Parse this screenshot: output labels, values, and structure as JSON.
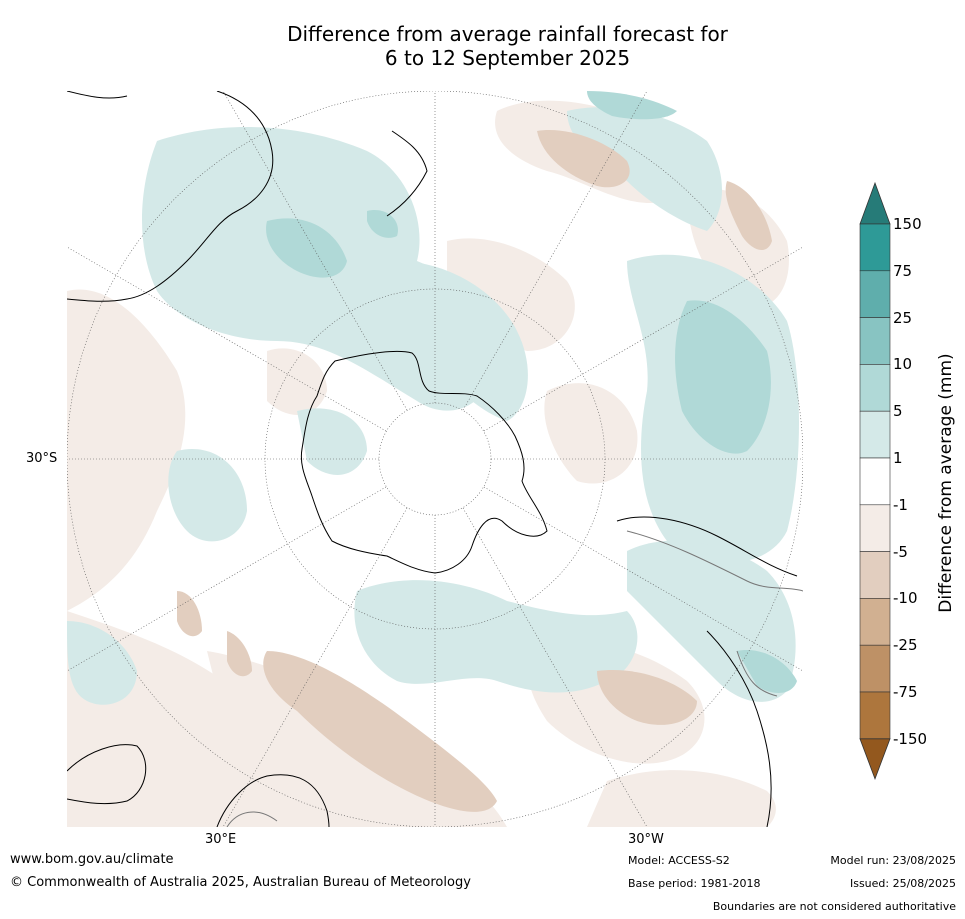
{
  "title_line1": "Difference from average rainfall forecast for",
  "title_line2": "6 to 12 September 2025",
  "lat_label": "30°S",
  "lon_label_east": "30°E",
  "lon_label_west": "30°W",
  "colorbar": {
    "title": "Difference from average (mm)",
    "ticks": [
      "150",
      "75",
      "25",
      "10",
      "5",
      "1",
      "-1",
      "-5",
      "-10",
      "-25",
      "-75",
      "-150"
    ],
    "colors": [
      "#267b78",
      "#2e9a97",
      "#5faeac",
      "#88c4c2",
      "#b0d9d7",
      "#d4e9e8",
      "#ffffff",
      "#f4ece7",
      "#e2cebf",
      "#d1b091",
      "#be9166",
      "#ad763d",
      "#93581e"
    ]
  },
  "footer": {
    "url": "www.bom.gov.au/climate",
    "copyright": "© Commonwealth of Australia 2025, Australian Bureau of Meteorology",
    "model": "Model: ACCESS-S2",
    "base_period": "Base period: 1981-2018",
    "model_run": "Model run: 23/08/2025",
    "issued": "Issued: 25/08/2025",
    "disclaimer": "Boundaries are not considered authoritative"
  }
}
